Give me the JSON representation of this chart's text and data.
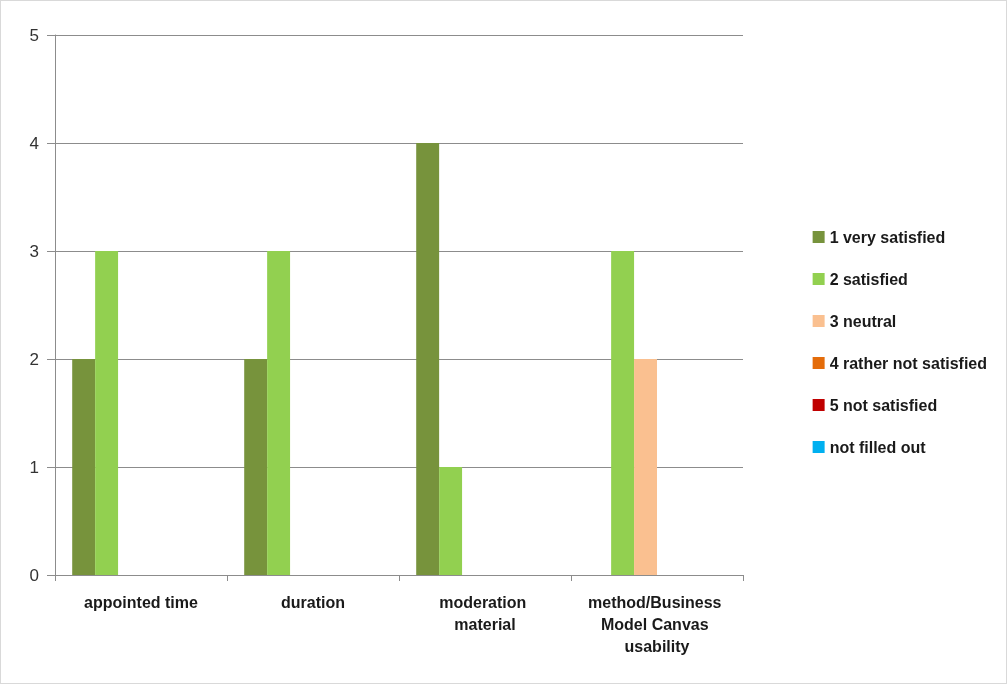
{
  "chart_data": {
    "type": "bar",
    "categories": [
      "appointed time",
      "duration",
      "moderation material",
      "method/Business Model Canvas usability"
    ],
    "series": [
      {
        "name": "1 very satisfied",
        "color": "#77933c",
        "values": [
          2,
          2,
          4,
          0
        ]
      },
      {
        "name": "2 satisfied",
        "color": "#92d050",
        "values": [
          3,
          3,
          1,
          3
        ]
      },
      {
        "name": "3 neutral",
        "color": "#fac090",
        "values": [
          0,
          0,
          0,
          2
        ]
      },
      {
        "name": "4 rather not satisfied",
        "color": "#e46c0a",
        "values": [
          0,
          0,
          0,
          0
        ]
      },
      {
        "name": "5 not satisfied",
        "color": "#c00000",
        "values": [
          0,
          0,
          0,
          0
        ]
      },
      {
        "name": "not filled out",
        "color": "#00b0f0",
        "values": [
          0,
          0,
          0,
          0
        ]
      }
    ],
    "ylim": [
      0,
      5
    ],
    "yticks": [
      0,
      1,
      2,
      3,
      4,
      5
    ],
    "grid": "y",
    "legend": "right"
  }
}
